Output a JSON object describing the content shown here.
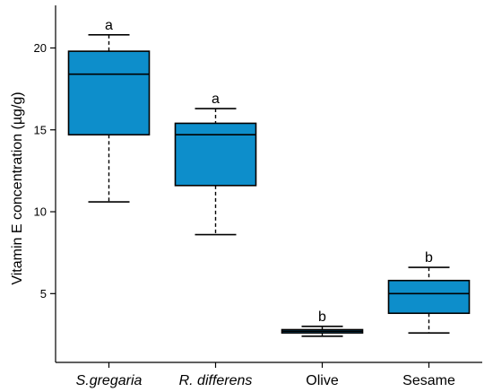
{
  "chart_data": {
    "type": "box",
    "title": "",
    "xlabel": "",
    "ylabel": "Vitamin E concentration (µg/g)",
    "ylim": [
      0.8,
      22.6
    ],
    "yticks": [
      5,
      10,
      15,
      20
    ],
    "ytick_labels": [
      "5",
      "10",
      "15",
      "20"
    ],
    "box_color": "#0d8ecb",
    "grid": false,
    "legend": "none",
    "categories": [
      {
        "label": "S.gregaria",
        "italic": true,
        "min": 10.6,
        "q1": 14.7,
        "median": 18.4,
        "q3": 19.8,
        "max": 20.8,
        "group": "a"
      },
      {
        "label": "R. differens",
        "italic": true,
        "min": 8.6,
        "q1": 11.6,
        "median": 14.7,
        "q3": 15.4,
        "max": 16.3,
        "group": "a"
      },
      {
        "label": "Olive",
        "italic": false,
        "min": 2.4,
        "q1": 2.6,
        "median": 2.7,
        "q3": 2.8,
        "max": 3.0,
        "group": "b"
      },
      {
        "label": "Sesame",
        "italic": false,
        "min": 2.6,
        "q1": 3.8,
        "median": 5.0,
        "q3": 5.8,
        "max": 6.6,
        "group": "b"
      }
    ]
  }
}
